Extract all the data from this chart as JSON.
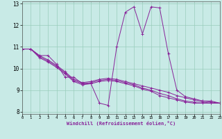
{
  "xlabel": "Windchill (Refroidissement éolien,°C)",
  "bg_color": "#c8eae6",
  "grid_color": "#99ccbb",
  "line_color": "#882299",
  "xlim": [
    0,
    23
  ],
  "ylim": [
    7.9,
    13.1
  ],
  "yticks": [
    8,
    9,
    10,
    11,
    12,
    13
  ],
  "xticks": [
    0,
    1,
    2,
    3,
    4,
    5,
    6,
    7,
    8,
    9,
    10,
    11,
    12,
    13,
    14,
    15,
    16,
    17,
    18,
    19,
    20,
    21,
    22,
    23
  ],
  "series1": [
    10.9,
    10.9,
    10.6,
    10.6,
    10.2,
    9.6,
    9.6,
    9.3,
    9.3,
    8.4,
    8.3,
    11.0,
    12.6,
    12.85,
    11.6,
    12.85,
    12.8,
    10.7,
    9.0,
    8.7,
    8.6,
    8.5,
    8.5,
    8.4
  ],
  "series2": [
    10.9,
    10.9,
    10.6,
    10.4,
    10.15,
    9.85,
    9.5,
    9.35,
    9.4,
    9.5,
    9.55,
    9.5,
    9.4,
    9.3,
    9.2,
    9.1,
    9.0,
    8.9,
    8.75,
    8.65,
    8.55,
    8.5,
    8.45,
    8.4
  ],
  "series3": [
    10.9,
    10.9,
    10.55,
    10.35,
    10.1,
    9.8,
    9.45,
    9.3,
    9.35,
    9.45,
    9.5,
    9.45,
    9.35,
    9.25,
    9.1,
    9.0,
    8.85,
    8.75,
    8.6,
    8.5,
    8.45,
    8.45,
    8.4,
    8.4
  ],
  "series4": [
    10.9,
    10.9,
    10.5,
    10.3,
    10.05,
    9.75,
    9.4,
    9.25,
    9.3,
    9.4,
    9.45,
    9.4,
    9.3,
    9.2,
    9.05,
    8.95,
    8.75,
    8.65,
    8.55,
    8.45,
    8.4,
    8.4,
    8.4,
    8.4
  ]
}
